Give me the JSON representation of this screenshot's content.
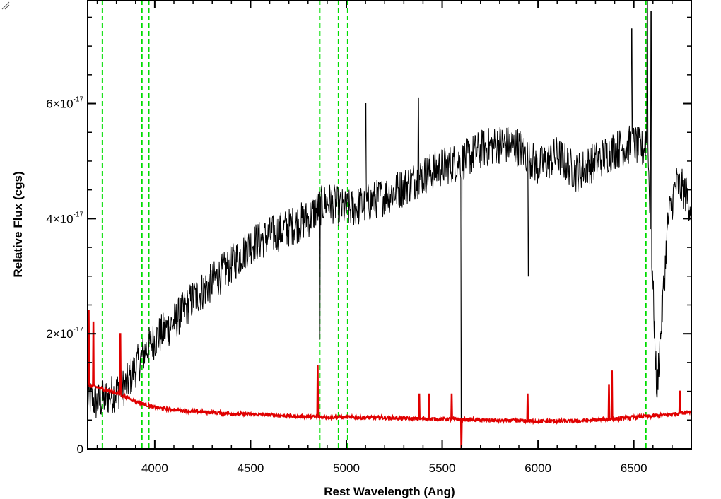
{
  "chart_data": {
    "type": "line",
    "title": "",
    "xlabel": "Rest Wavelength (Ang)",
    "ylabel": "Relative Flux (cgs)",
    "xlim": [
      3650,
      6800
    ],
    "ylim": [
      0,
      7.8e-17
    ],
    "x_ticks": [
      {
        "value": 4000,
        "label": "4000"
      },
      {
        "value": 4500,
        "label": "4500"
      },
      {
        "value": 5000,
        "label": "5000"
      },
      {
        "value": 5500,
        "label": "5500"
      },
      {
        "value": 6000,
        "label": "6000"
      },
      {
        "value": 6500,
        "label": "6500"
      }
    ],
    "y_ticks": [
      {
        "value": 0,
        "mantissa": "0",
        "exponent": ""
      },
      {
        "value": 2e-17,
        "mantissa": "2×10",
        "exponent": "-17"
      },
      {
        "value": 4e-17,
        "mantissa": "4×10",
        "exponent": "-17"
      },
      {
        "value": 6e-17,
        "mantissa": "6×10",
        "exponent": "-17"
      }
    ],
    "x_minor_step": 100,
    "y_minor_step": 5e-18,
    "vlines": {
      "color": "#00dd00",
      "style": "dashed",
      "x": [
        3727,
        3933,
        3969,
        4861,
        4959,
        5007,
        6563
      ]
    },
    "series": [
      {
        "color": "#000000",
        "noise": 3.5e-18,
        "x": [
          3650,
          3700,
          3750,
          3800,
          3850,
          3900,
          3950,
          4000,
          4100,
          4200,
          4300,
          4400,
          4500,
          4600,
          4700,
          4800,
          4860,
          4900,
          5000,
          5100,
          5200,
          5300,
          5400,
          5500,
          5600,
          5700,
          5800,
          5900,
          6000,
          6100,
          6200,
          6300,
          6400,
          6500,
          6550,
          6570,
          6620,
          6680,
          6720,
          6760,
          6800
        ],
        "y": [
          9e-18,
          8e-18,
          9e-18,
          1e-17,
          1.1e-17,
          1.4e-17,
          1.7e-17,
          1.9e-17,
          2.2e-17,
          2.6e-17,
          2.9e-17,
          3.2e-17,
          3.55e-17,
          3.7e-17,
          3.85e-17,
          4e-17,
          4.2e-17,
          4.3e-17,
          4.15e-17,
          4.25e-17,
          4.4e-17,
          4.55e-17,
          4.75e-17,
          4.9e-17,
          5e-17,
          5.2e-17,
          5.3e-17,
          5.25e-17,
          4.9e-17,
          5.1e-17,
          4.8e-17,
          5e-17,
          5.2e-17,
          5.3e-17,
          5.2e-17,
          5.5e-17,
          1e-17,
          4e-17,
          4.6e-17,
          4.5e-17,
          4.2e-17
        ],
        "absorption": [
          {
            "x": 4861,
            "y": 1.9e-17
          },
          {
            "x": 5600,
            "y": 0.0
          },
          {
            "x": 5950,
            "y": 3e-17
          },
          {
            "x": 6620,
            "y": 9e-18
          }
        ],
        "spikes": [
          {
            "x": 5100,
            "y": 6e-17
          },
          {
            "x": 5375,
            "y": 6.1e-17
          },
          {
            "x": 6570,
            "y": 7.8e-17
          },
          {
            "x": 6590,
            "y": 7.6e-17
          },
          {
            "x": 6490,
            "y": 7.3e-17
          }
        ]
      },
      {
        "color": "#e00000",
        "noise": 3e-19,
        "x": [
          3650,
          3700,
          3750,
          3800,
          3850,
          3900,
          3950,
          4000,
          4100,
          4200,
          4300,
          4400,
          4500,
          4600,
          4700,
          4800,
          4900,
          5000,
          5100,
          5200,
          5300,
          5400,
          5500,
          5600,
          5700,
          5800,
          5900,
          6000,
          6100,
          6200,
          6300,
          6400,
          6500,
          6600,
          6700,
          6800
        ],
        "y": [
          1.1e-17,
          1.07e-17,
          1.02e-17,
          9.7e-18,
          9e-18,
          8.3e-18,
          7.7e-18,
          7.2e-18,
          6.8e-18,
          6.5e-18,
          6.3e-18,
          6.1e-18,
          6e-18,
          5.9e-18,
          5.7e-18,
          5.6e-18,
          5.5e-18,
          5.5e-18,
          5.4e-18,
          5.4e-18,
          5.3e-18,
          5.2e-18,
          5.2e-18,
          5.1e-18,
          5e-18,
          4.9e-18,
          4.9e-18,
          4.8e-18,
          4.8e-18,
          4.8e-18,
          5e-18,
          5.2e-18,
          5.5e-18,
          5.7e-18,
          6e-18,
          6.5e-18
        ],
        "spikes": [
          {
            "x": 3655,
            "y": 2.4e-17
          },
          {
            "x": 3680,
            "y": 2.2e-17
          },
          {
            "x": 3820,
            "y": 2e-17
          },
          {
            "x": 4850,
            "y": 1.45e-17
          },
          {
            "x": 5380,
            "y": 9.5e-18
          },
          {
            "x": 5430,
            "y": 9.5e-18
          },
          {
            "x": 5550,
            "y": 9.5e-18
          },
          {
            "x": 5945,
            "y": 9.5e-18
          },
          {
            "x": 6385,
            "y": 1.35e-17
          },
          {
            "x": 6370,
            "y": 1.1e-17
          },
          {
            "x": 6740,
            "y": 1e-17
          }
        ],
        "dips": [
          {
            "x": 5600,
            "y": 0.0
          }
        ]
      }
    ]
  }
}
